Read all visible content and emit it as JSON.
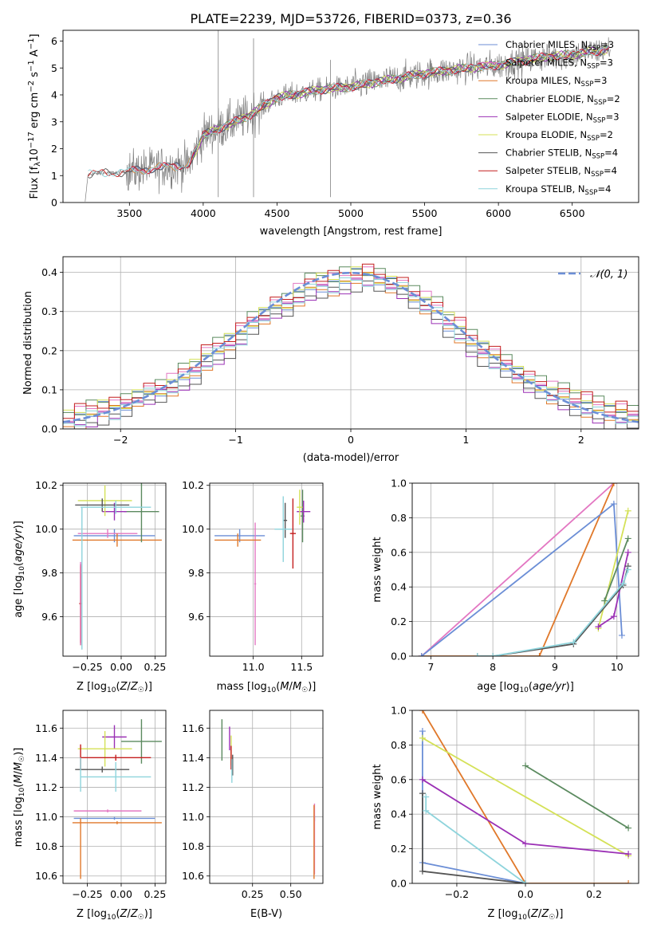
{
  "figure": {
    "title": "PLATE=2239, MJD=53726, FIBERID=0373, z=0.36"
  },
  "colors": {
    "Chabrier MILES": "#6b8ed6",
    "Salpeter MILES": "#e377c2",
    "Kroupa MILES": "#e0782a",
    "Chabrier ELODIE": "#5b8a5f",
    "Salpeter ELODIE": "#9b30b5",
    "Kroupa ELODIE": "#d4e157",
    "Chabrier STELIB": "#555555",
    "Salpeter STELIB": "#c41e1e",
    "Kroupa STELIB": "#8ed4dc"
  },
  "chart_data": [
    {
      "id": "spectrum",
      "type": "line",
      "xlabel": "wavelength [Angstrom, rest frame]",
      "ylabel": "Flux [f_λ 10^-17 erg cm^-2 s^-1 A^-1]",
      "xlim": [
        3050,
        6950
      ],
      "ylim": [
        0,
        6.4
      ],
      "xticks": [
        3500,
        4000,
        4500,
        5000,
        5500,
        6000,
        6500
      ],
      "yticks": [
        0,
        1,
        2,
        3,
        4,
        5,
        6
      ],
      "grid": false,
      "legend_position": "upper-right",
      "data_color": "#808080",
      "model_anchors": {
        "x": [
          3200,
          3220,
          3500,
          3700,
          3900,
          4000,
          4300,
          4500,
          4800,
          5000,
          5300,
          5500,
          5800,
          6000,
          6300,
          6500,
          6760
        ],
        "y": [
          0,
          1.05,
          1.15,
          1.3,
          1.4,
          2.5,
          3.2,
          3.9,
          4.2,
          4.3,
          4.6,
          4.8,
          5.0,
          5.1,
          5.4,
          5.5,
          5.7
        ]
      },
      "series": [
        {
          "name": "Chabrier MILES",
          "nssp": 3
        },
        {
          "name": "Salpeter MILES",
          "nssp": 3
        },
        {
          "name": "Kroupa MILES",
          "nssp": 3
        },
        {
          "name": "Chabrier ELODIE",
          "nssp": 2
        },
        {
          "name": "Salpeter ELODIE",
          "nssp": 3
        },
        {
          "name": "Kroupa ELODIE",
          "nssp": 2
        },
        {
          "name": "Chabrier STELIB",
          "nssp": 4
        },
        {
          "name": "Salpeter STELIB",
          "nssp": 4
        },
        {
          "name": "Kroupa STELIB",
          "nssp": 4
        }
      ]
    },
    {
      "id": "residuals",
      "type": "line",
      "xlabel": "(data-model)/error",
      "ylabel": "Normed distribution",
      "xlim": [
        -2.5,
        2.5
      ],
      "ylim": [
        0,
        0.44
      ],
      "xticks": [
        -2,
        -1,
        0,
        1,
        2
      ],
      "yticks": [
        0.0,
        0.1,
        0.2,
        0.3,
        0.4
      ],
      "grid": true,
      "legend_position": "upper-right",
      "reference": {
        "name": "𝒩(0, 1)",
        "mean": 0,
        "sigma": 1,
        "color": "#6b8ed6",
        "style": "dashed"
      },
      "bin_width": 0.1,
      "bins_start": -2.5,
      "values": [
        0.02,
        0.03,
        0.04,
        0.05,
        0.05,
        0.06,
        0.08,
        0.09,
        0.1,
        0.11,
        0.13,
        0.15,
        0.18,
        0.2,
        0.22,
        0.24,
        0.27,
        0.29,
        0.31,
        0.32,
        0.34,
        0.36,
        0.37,
        0.37,
        0.38,
        0.39,
        0.39,
        0.38,
        0.37,
        0.36,
        0.34,
        0.32,
        0.3,
        0.27,
        0.25,
        0.22,
        0.2,
        0.18,
        0.16,
        0.14,
        0.12,
        0.11,
        0.09,
        0.08,
        0.07,
        0.06,
        0.05,
        0.04,
        0.04,
        0.03
      ],
      "offsets": [
        0.0,
        0.012,
        -0.01,
        0.018,
        -0.015,
        0.008,
        -0.02,
        0.015,
        -0.006
      ]
    },
    {
      "id": "age-vs-Z",
      "type": "scatter",
      "xlabel": "Z [log10(Z/Z☉)]",
      "ylabel": "age [log10(age/yr)]",
      "xlim": [
        -0.43,
        0.33
      ],
      "ylim": [
        9.42,
        10.21
      ],
      "xticks": [
        -0.25,
        0.0,
        0.25
      ],
      "xtick_labels": [
        "−0.25",
        "0.00",
        "0.25"
      ],
      "yticks": [
        9.6,
        9.8,
        10.0,
        10.2
      ],
      "grid": true,
      "points": [
        {
          "s": "Chabrier MILES",
          "x": -0.05,
          "xerr": 0.3,
          "y": 9.97,
          "yerr": 0.03
        },
        {
          "s": "Salpeter MILES",
          "x": -0.1,
          "xerr": 0.22,
          "y": 9.98,
          "yerr": 0.02
        },
        {
          "s": "Kroupa MILES",
          "x": -0.03,
          "xerr": 0.33,
          "y": 9.95,
          "yerr": 0.03
        },
        {
          "s": "Chabrier ELODIE",
          "x": 0.15,
          "xerr": 0.13,
          "y": 10.08,
          "yerr": 0.14
        },
        {
          "s": "Salpeter ELODIE",
          "x": -0.05,
          "xerr": 0.09,
          "y": 10.08,
          "yerr": 0.04
        },
        {
          "s": "Kroupa ELODIE",
          "x": -0.12,
          "xerr": 0.2,
          "y": 10.13,
          "yerr": 0.07
        },
        {
          "s": "Chabrier STELIB",
          "x": -0.14,
          "xerr": 0.2,
          "y": 10.11,
          "yerr": 0.03
        },
        {
          "s": "Salpeter STELIB",
          "x": -0.3,
          "xerr": 0.01,
          "y": 9.66,
          "yerr": 0.18
        },
        {
          "s": "Kroupa STELIB",
          "x": -0.04,
          "xerr": 0.26,
          "y": 10.1,
          "yerr": 0.03
        }
      ],
      "vertical_extra": [
        {
          "s": "Kroupa MILES",
          "x": -0.3,
          "y0": 9.47,
          "y1": 9.83
        },
        {
          "s": "Salpeter MILES",
          "x": -0.3,
          "y0": 9.47,
          "y1": 9.85
        },
        {
          "s": "Kroupa STELIB",
          "x": -0.29,
          "y0": 9.45,
          "y1": 10.1
        }
      ]
    },
    {
      "id": "age-vs-mass",
      "type": "scatter",
      "xlabel": "mass [log10(M/M☉)]",
      "ylabel": "",
      "xlim": [
        10.55,
        11.72
      ],
      "ylim": [
        9.42,
        10.21
      ],
      "xticks": [
        11.0,
        11.5
      ],
      "yticks": [
        9.6,
        9.8,
        10.0,
        10.2
      ],
      "grid": true,
      "points": [
        {
          "s": "Chabrier MILES",
          "x": 10.86,
          "xerr": 0.26,
          "y": 9.97,
          "yerr": 0.03
        },
        {
          "s": "Salpeter MILES",
          "x": 11.02,
          "xerr": 0.01,
          "y": 9.75,
          "yerr": 0.28
        },
        {
          "s": "Kroupa MILES",
          "x": 10.84,
          "xerr": 0.24,
          "y": 9.95,
          "yerr": 0.03
        },
        {
          "s": "Chabrier ELODIE",
          "x": 11.51,
          "xerr": 0.02,
          "y": 10.06,
          "yerr": 0.12
        },
        {
          "s": "Salpeter ELODIE",
          "x": 11.52,
          "xerr": 0.07,
          "y": 10.08,
          "yerr": 0.05
        },
        {
          "s": "Kroupa ELODIE",
          "x": 11.48,
          "xerr": 0.03,
          "y": 10.1,
          "yerr": 0.08
        },
        {
          "s": "Chabrier STELIB",
          "x": 11.33,
          "xerr": 0.02,
          "y": 10.04,
          "yerr": 0.08
        },
        {
          "s": "Salpeter STELIB",
          "x": 11.41,
          "xerr": 0.03,
          "y": 9.98,
          "yerr": 0.16
        },
        {
          "s": "Kroupa STELIB",
          "x": 11.31,
          "xerr": 0.09,
          "y": 10.0,
          "yerr": 0.15
        }
      ]
    },
    {
      "id": "mass-weight-vs-age",
      "type": "line",
      "xlabel": "age [log10(age/yr)]",
      "ylabel": "mass weight",
      "xlim": [
        6.7,
        10.35
      ],
      "ylim": [
        0,
        1.0
      ],
      "xticks": [
        7,
        8,
        9,
        10
      ],
      "yticks": [
        0.0,
        0.2,
        0.4,
        0.6,
        0.8,
        1.0
      ],
      "grid": true,
      "series": [
        {
          "s": "Salpeter MILES",
          "x": [
            6.85,
            9.95
          ],
          "y": [
            0.0,
            1.0
          ]
        },
        {
          "s": "Kroupa MILES",
          "x": [
            6.85,
            8.75,
            9.95
          ],
          "y": [
            0.0,
            0.0,
            1.0
          ]
        },
        {
          "s": "Chabrier MILES",
          "x": [
            6.85,
            9.95,
            10.08
          ],
          "y": [
            0.0,
            0.88,
            0.12
          ]
        },
        {
          "s": "Kroupa ELODIE",
          "x": [
            9.7,
            10.18
          ],
          "y": [
            0.16,
            0.84
          ]
        },
        {
          "s": "Chabrier ELODIE",
          "x": [
            9.8,
            10.18
          ],
          "y": [
            0.32,
            0.68
          ]
        },
        {
          "s": "Salpeter ELODIE",
          "x": [
            9.7,
            9.95,
            10.18
          ],
          "y": [
            0.17,
            0.23,
            0.6
          ]
        },
        {
          "s": "Chabrier STELIB",
          "x": [
            7.75,
            8.0,
            9.3,
            10.1,
            10.18
          ],
          "y": [
            0.0,
            0.0,
            0.07,
            0.41,
            0.52
          ]
        },
        {
          "s": "Kroupa STELIB",
          "x": [
            7.75,
            8.0,
            9.3,
            10.1,
            10.18
          ],
          "y": [
            0.0,
            0.0,
            0.08,
            0.42,
            0.5
          ]
        }
      ]
    },
    {
      "id": "mass-vs-Z",
      "type": "scatter",
      "xlabel": "Z [log10(Z/Z☉)]",
      "ylabel": "mass [log10(M/M☉)]",
      "xlim": [
        -0.43,
        0.33
      ],
      "ylim": [
        10.55,
        11.72
      ],
      "xticks": [
        -0.25,
        0.0,
        0.25
      ],
      "xtick_labels": [
        "−0.25",
        "0.00",
        "0.25"
      ],
      "yticks": [
        10.6,
        10.8,
        11.0,
        11.2,
        11.4,
        11.6
      ],
      "grid": true,
      "points": [
        {
          "s": "Chabrier MILES",
          "x": -0.05,
          "xerr": 0.3,
          "y": 10.99,
          "yerr": 0.01
        },
        {
          "s": "Salpeter MILES",
          "x": -0.1,
          "xerr": 0.25,
          "y": 11.04,
          "yerr": 0.01
        },
        {
          "s": "Kroupa MILES",
          "x": -0.03,
          "xerr": 0.33,
          "y": 10.96,
          "yerr": 0.01
        },
        {
          "s": "Chabrier ELODIE",
          "x": 0.15,
          "xerr": 0.15,
          "y": 11.51,
          "yerr": 0.15
        },
        {
          "s": "Salpeter ELODIE",
          "x": -0.05,
          "xerr": 0.09,
          "y": 11.54,
          "yerr": 0.08
        },
        {
          "s": "Kroupa ELODIE",
          "x": -0.12,
          "xerr": 0.2,
          "y": 11.46,
          "yerr": 0.12
        },
        {
          "s": "Chabrier STELIB",
          "x": -0.14,
          "xerr": 0.2,
          "y": 11.32,
          "yerr": 0.02
        },
        {
          "s": "Salpeter STELIB",
          "x": -0.04,
          "xerr": 0.26,
          "y": 11.4,
          "yerr": 0.02
        },
        {
          "s": "Kroupa STELIB",
          "x": -0.04,
          "xerr": 0.26,
          "y": 11.27,
          "yerr": 0.1
        }
      ],
      "vertical_extra": [
        {
          "s": "Kroupa MILES",
          "x": -0.3,
          "y0": 10.58,
          "y1": 10.99
        },
        {
          "s": "Salpeter STELIB",
          "x": -0.3,
          "y0": 11.32,
          "y1": 11.49
        },
        {
          "s": "Kroupa STELIB",
          "x": -0.3,
          "y0": 11.17,
          "y1": 11.4
        }
      ]
    },
    {
      "id": "mass-vs-EBV",
      "type": "scatter",
      "xlabel": "E(B-V)",
      "ylabel": "",
      "xlim": [
        -0.03,
        0.71
      ],
      "ylim": [
        10.55,
        11.72
      ],
      "xticks": [
        0.25,
        0.5
      ],
      "yticks": [
        10.6,
        10.8,
        11.0,
        11.2,
        11.4,
        11.6
      ],
      "grid": true,
      "points": [
        {
          "s": "Chabrier ELODIE",
          "x": 0.05,
          "xerr": 0.0,
          "y": 11.52,
          "yerr": 0.14
        },
        {
          "s": "Salpeter ELODIE",
          "x": 0.1,
          "xerr": 0.0,
          "y": 11.53,
          "yerr": 0.08
        },
        {
          "s": "Kroupa ELODIE",
          "x": 0.11,
          "xerr": 0.0,
          "y": 11.45,
          "yerr": 0.1
        },
        {
          "s": "Salpeter STELIB",
          "x": 0.11,
          "xerr": 0.0,
          "y": 11.4,
          "yerr": 0.08
        },
        {
          "s": "Chabrier STELIB",
          "x": 0.12,
          "xerr": 0.0,
          "y": 11.35,
          "yerr": 0.07
        },
        {
          "s": "Kroupa STELIB",
          "x": 0.115,
          "xerr": 0.0,
          "y": 11.31,
          "yerr": 0.08
        },
        {
          "s": "Chabrier MILES",
          "x": 0.655,
          "xerr": 0.0,
          "y": 10.99,
          "yerr": 0.02
        },
        {
          "s": "Salpeter MILES",
          "x": 0.655,
          "xerr": 0.0,
          "y": 10.85,
          "yerr": 0.24
        },
        {
          "s": "Kroupa MILES",
          "x": 0.652,
          "xerr": 0.0,
          "y": 10.83,
          "yerr": 0.25
        }
      ]
    },
    {
      "id": "mass-weight-vs-Z",
      "type": "line",
      "xlabel": "Z [log10(Z/Z☉)]",
      "ylabel": "mass weight",
      "xlim": [
        -0.33,
        0.33
      ],
      "ylim": [
        0,
        1.0
      ],
      "xticks": [
        -0.2,
        0.0,
        0.2
      ],
      "xtick_labels": [
        "−0.2",
        "0.0",
        "0.2"
      ],
      "yticks": [
        0.0,
        0.2,
        0.4,
        0.6,
        0.8,
        1.0
      ],
      "grid": true,
      "series": [
        {
          "s": "Kroupa MILES",
          "x": [
            -0.3,
            0.0,
            0.3
          ],
          "y": [
            1.0,
            0.0,
            0.0
          ]
        },
        {
          "s": "Chabrier MILES",
          "x": [
            -0.3,
            -0.3,
            0.0
          ],
          "y": [
            0.88,
            0.12,
            0.0
          ]
        },
        {
          "s": "Kroupa ELODIE",
          "x": [
            -0.3,
            0.3
          ],
          "y": [
            0.84,
            0.16
          ]
        },
        {
          "s": "Chabrier ELODIE",
          "x": [
            0.0,
            0.3
          ],
          "y": [
            0.68,
            0.32
          ]
        },
        {
          "s": "Salpeter ELODIE",
          "x": [
            -0.3,
            0.0,
            0.3
          ],
          "y": [
            0.6,
            0.23,
            0.17
          ]
        },
        {
          "s": "Chabrier STELIB",
          "x": [
            -0.3,
            -0.3,
            0.0
          ],
          "y": [
            0.52,
            0.07,
            0.0
          ]
        },
        {
          "s": "Kroupa STELIB",
          "x": [
            -0.29,
            -0.29,
            0.0
          ],
          "y": [
            0.5,
            0.42,
            0.0
          ]
        }
      ]
    }
  ]
}
